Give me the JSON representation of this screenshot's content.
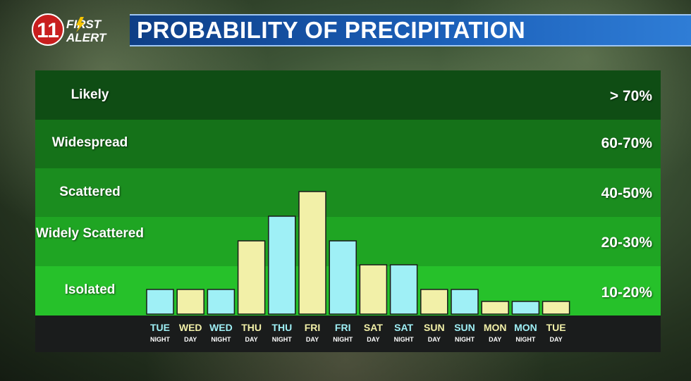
{
  "header": {
    "logo_number": "11",
    "logo_line1": "FIRST",
    "logo_line2": "ALERT",
    "title": "PROBABILITY OF PRECIPITATION"
  },
  "colors": {
    "day_bar": "#f2f0a8",
    "night_bar": "#9ff0f6",
    "band_likely": "#0f4d14",
    "band_widespread": "#157219",
    "band_scattered": "#1b8d1f",
    "band_widely": "#1fa523",
    "band_isolated": "#26c12a"
  },
  "bands": [
    {
      "label": "Likely",
      "range": "> 70%"
    },
    {
      "label": "Widespread",
      "range": "60-70%"
    },
    {
      "label": "Scattered",
      "range": "40-50%"
    },
    {
      "label": "Widely Scattered",
      "range": "20-30%"
    },
    {
      "label": "Isolated",
      "range": "10-20%"
    }
  ],
  "chart_data": {
    "type": "bar",
    "categories": [
      {
        "day": "TUE",
        "period": "NIGHT"
      },
      {
        "day": "WED",
        "period": "DAY"
      },
      {
        "day": "WED",
        "period": "NIGHT"
      },
      {
        "day": "THU",
        "period": "DAY"
      },
      {
        "day": "THU",
        "period": "NIGHT"
      },
      {
        "day": "FRI",
        "period": "DAY"
      },
      {
        "day": "FRI",
        "period": "NIGHT"
      },
      {
        "day": "SAT",
        "period": "DAY"
      },
      {
        "day": "SAT",
        "period": "NIGHT"
      },
      {
        "day": "SUN",
        "period": "DAY"
      },
      {
        "day": "SUN",
        "period": "NIGHT"
      },
      {
        "day": "MON",
        "period": "DAY"
      },
      {
        "day": "MON",
        "period": "NIGHT"
      },
      {
        "day": "TUE",
        "period": "DAY"
      }
    ],
    "values": [
      10,
      10,
      10,
      30,
      40,
      50,
      30,
      20,
      20,
      10,
      10,
      5,
      5,
      5
    ],
    "ylim": [
      0,
      100
    ]
  }
}
